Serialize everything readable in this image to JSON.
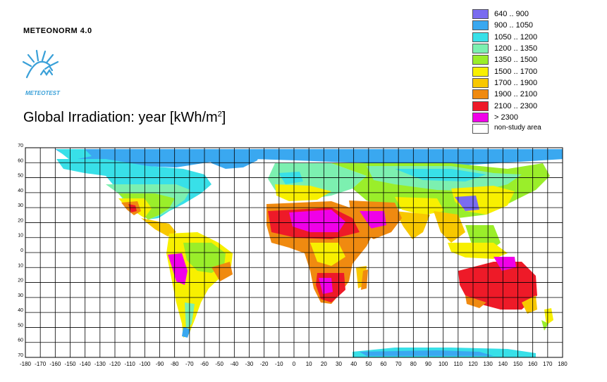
{
  "header": {
    "brand": "METEONORM 4.0",
    "logo_text": "METEOTEST"
  },
  "title": {
    "main": "Global Irradiation: year  [kWh/m",
    "sup": "2",
    "close": "]"
  },
  "legend": {
    "items": [
      {
        "label": "640 .. 900",
        "color": "#7a6cf0"
      },
      {
        "label": "900 .. 1050",
        "color": "#3aa8f0"
      },
      {
        "label": "1050 .. 1200",
        "color": "#38e0e8"
      },
      {
        "label": "1200 .. 1350",
        "color": "#7cf0b0"
      },
      {
        "label": "1350 .. 1500",
        "color": "#9aee2a"
      },
      {
        "label": "1500 .. 1700",
        "color": "#f8f000"
      },
      {
        "label": "1700 .. 1900",
        "color": "#f8c800"
      },
      {
        "label": "1900 .. 2100",
        "color": "#f08a10"
      },
      {
        "label": "2100 .. 2300",
        "color": "#ee1a28"
      },
      {
        "label": "> 2300",
        "color": "#f000e8"
      }
    ],
    "non_study": "non-study area"
  },
  "axes": {
    "lat_labels": [
      "70",
      "60",
      "50",
      "40",
      "30",
      "20",
      "10",
      "0",
      "10",
      "20",
      "30",
      "40",
      "50",
      "60",
      "70"
    ],
    "lon_labels": [
      "-180",
      "-170",
      "-160",
      "-150",
      "-140",
      "-130",
      "-120",
      "-110",
      "-100",
      "-90",
      "-80",
      "-70",
      "-60",
      "-50",
      "-40",
      "-30",
      "-20",
      "-10",
      "0",
      "10",
      "20",
      "30",
      "40",
      "50",
      "60",
      "70",
      "80",
      "90",
      "100",
      "110",
      "120",
      "130",
      "140",
      "150",
      "160",
      "170",
      "180"
    ]
  },
  "colors": {
    "ocean": "#ffffff",
    "grid": "#000000"
  }
}
